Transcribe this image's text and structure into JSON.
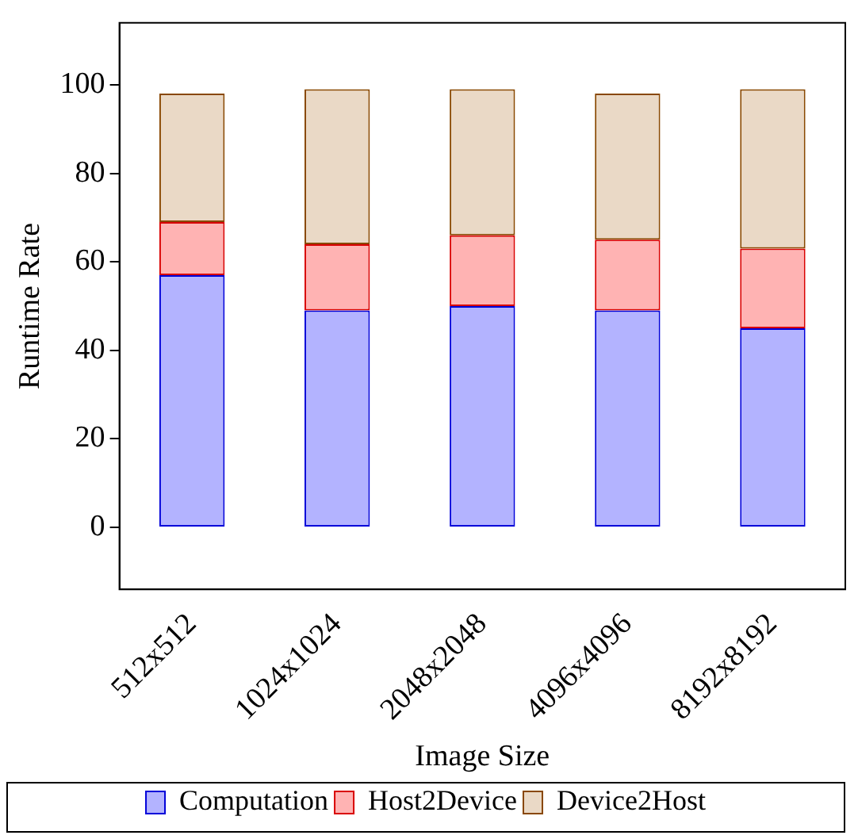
{
  "chart_data": {
    "type": "bar",
    "stacked": true,
    "xlabel": "Image Size",
    "ylabel": "Runtime Rate",
    "categories": [
      "512x512",
      "1024x1024",
      "2048x2048",
      "4096x4096",
      "8192x8192"
    ],
    "series": [
      {
        "name": "Computation",
        "color": "#b3b3ff",
        "values": [
          57,
          49,
          50,
          49,
          45
        ]
      },
      {
        "name": "Host2Device",
        "color": "#ffb3b3",
        "values": [
          12,
          15,
          16,
          16,
          18
        ]
      },
      {
        "name": "Device2Host",
        "color": "#ead9c6",
        "values": [
          29,
          35,
          33,
          33,
          36
        ]
      }
    ],
    "ylim": [
      -14,
      114
    ],
    "yticks": [
      0,
      20,
      40,
      60,
      80,
      100
    ],
    "grid": false,
    "legend": "bottom"
  }
}
